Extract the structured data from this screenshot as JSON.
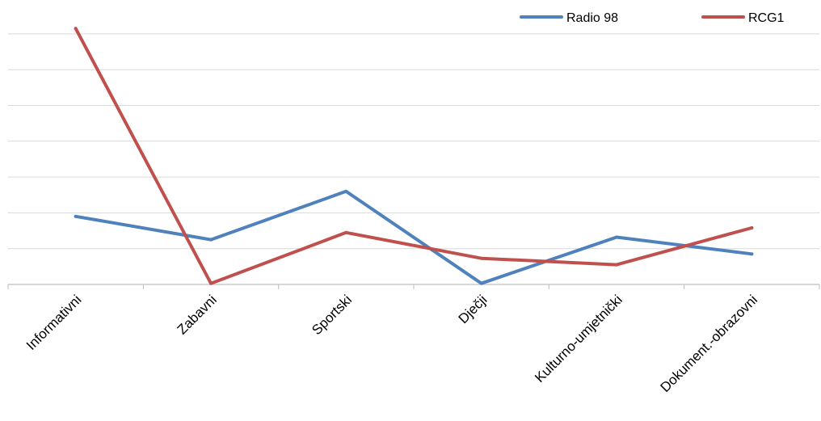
{
  "chart_data": {
    "type": "line",
    "title": "",
    "xlabel": "",
    "ylabel": "",
    "categories": [
      "Informativni",
      "Zabavni",
      "Sportski",
      "Dječji",
      "Kulturno-umjetnički",
      "Dokument.-obrazovni"
    ],
    "series": [
      {
        "name": "Radio 98",
        "color": "#4F81BD",
        "values": [
          19,
          12.5,
          26,
          0.3,
          13.2,
          8.5
        ]
      },
      {
        "name": "RCG1",
        "color": "#C0504D",
        "values": [
          71.5,
          0.3,
          14.5,
          7.3,
          5.5,
          15.8
        ]
      }
    ],
    "ylim": [
      0,
      70
    ],
    "y_gridlines": [
      10,
      20,
      30,
      40,
      50,
      60,
      70
    ],
    "grid": true,
    "y_tick_labels_visible": false,
    "legend": {
      "position": "top-right"
    },
    "colors": {
      "gridline": "#D9D9D9",
      "axis": "#BFBFBF"
    }
  }
}
